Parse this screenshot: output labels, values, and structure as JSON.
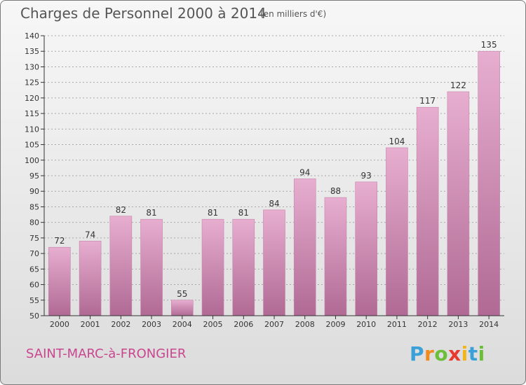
{
  "header": {
    "title": "Charges de Personnel 2000 à 2014",
    "subtitle": "(en milliers d'€)"
  },
  "footer": {
    "commune": "SAINT-MARC-à-FRONGIER",
    "logo_letters": [
      "P",
      "r",
      "o",
      "x",
      "i",
      "t",
      "i"
    ],
    "logo_colors": [
      "#3aa0d8",
      "#f08a1c",
      "#6cbf3a",
      "#e8392f",
      "#f2b51b",
      "#3aa0d8",
      "#6cbf3a"
    ]
  },
  "colors": {
    "bar_top": "#e7aed0",
    "bar_bottom": "#b06a94",
    "bar_side": "#c784ab",
    "axis": "#333333",
    "grid": "#a8a8a8",
    "text": "#333333"
  },
  "chart_data": {
    "type": "bar",
    "title": "Charges de Personnel 2000 à 2014",
    "subtitle": "(en milliers d'€)",
    "categories": [
      "2000",
      "2001",
      "2002",
      "2003",
      "2004",
      "2005",
      "2006",
      "2007",
      "2008",
      "2009",
      "2010",
      "2011",
      "2012",
      "2013",
      "2014"
    ],
    "values": [
      72,
      74,
      82,
      81,
      55,
      81,
      81,
      84,
      94,
      88,
      93,
      104,
      117,
      122,
      135
    ],
    "data_labels": [
      "72",
      "74",
      "82",
      "81",
      "55",
      "81",
      "81",
      "84",
      "94",
      "88",
      "93",
      "104",
      "117",
      "122",
      "135"
    ],
    "yticks": [
      "50",
      "55",
      "60",
      "65",
      "70",
      "75",
      "80",
      "85",
      "90",
      "95",
      "100",
      "105",
      "110",
      "115",
      "120",
      "125",
      "130",
      "135",
      "140"
    ],
    "ylim": [
      50,
      140
    ],
    "ytick_step": 5,
    "grid": true,
    "xlabel": "",
    "ylabel": ""
  }
}
